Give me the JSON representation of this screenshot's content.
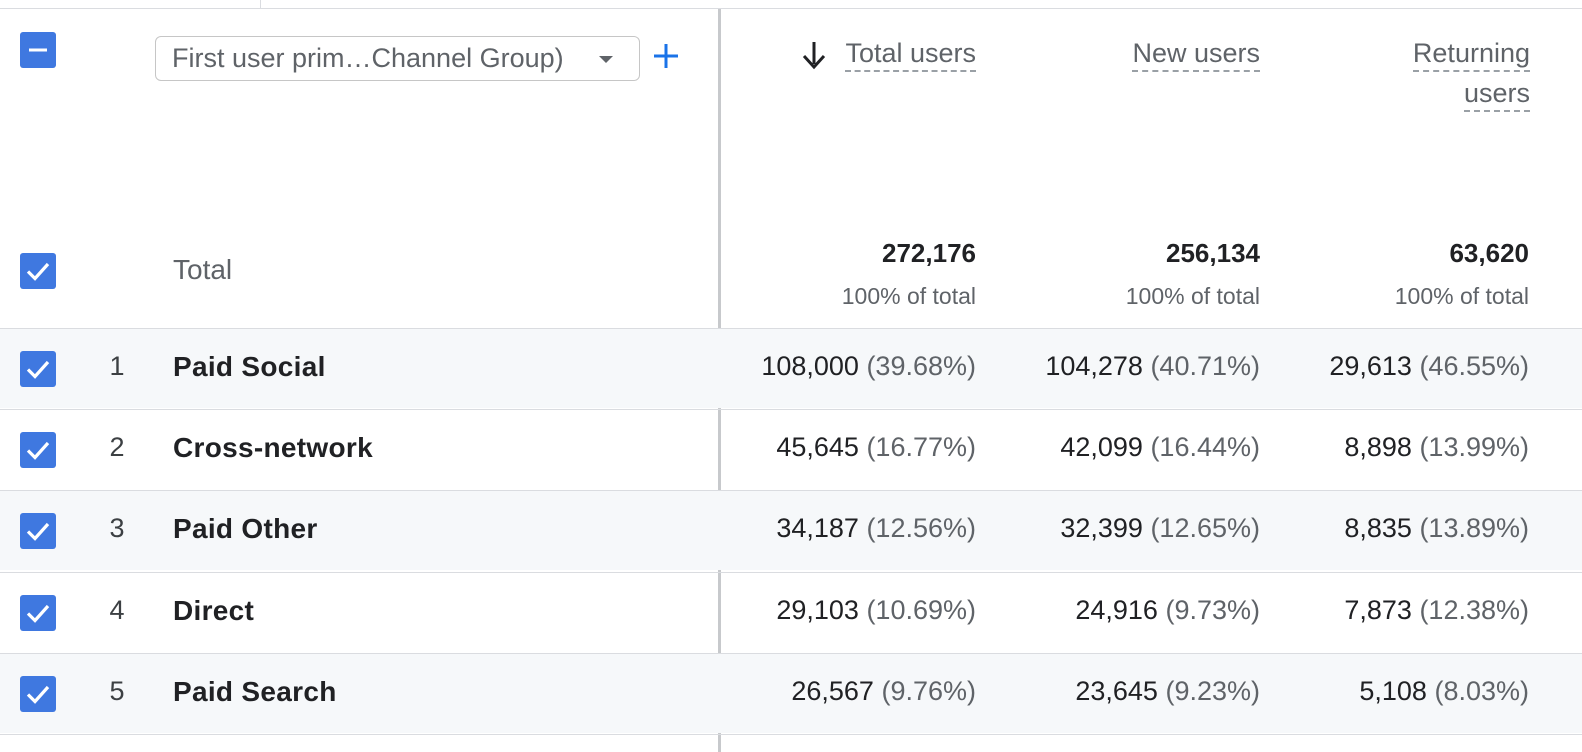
{
  "header": {
    "dimension_select": "First user prim…Channel Group)",
    "columns": [
      {
        "label_line1": "Total users",
        "label_line2": ""
      },
      {
        "label_line1": "New users",
        "label_line2": ""
      },
      {
        "label_line1": "Returning",
        "label_line2": "users"
      }
    ]
  },
  "totals": {
    "label": "Total",
    "values": [
      {
        "value": "272,176",
        "pct": "100% of total"
      },
      {
        "value": "256,134",
        "pct": "100% of total"
      },
      {
        "value": "63,620",
        "pct": "100% of total"
      }
    ]
  },
  "rows": [
    {
      "rank": "1",
      "name": "Paid Social",
      "cells": [
        {
          "n": "108,000",
          "p": "(39.68%)"
        },
        {
          "n": "104,278",
          "p": "(40.71%)"
        },
        {
          "n": "29,613",
          "p": "(46.55%)"
        }
      ]
    },
    {
      "rank": "2",
      "name": "Cross-network",
      "cells": [
        {
          "n": "45,645",
          "p": "(16.77%)"
        },
        {
          "n": "42,099",
          "p": "(16.44%)"
        },
        {
          "n": "8,898",
          "p": "(13.99%)"
        }
      ]
    },
    {
      "rank": "3",
      "name": "Paid Other",
      "cells": [
        {
          "n": "34,187",
          "p": "(12.56%)"
        },
        {
          "n": "32,399",
          "p": "(12.65%)"
        },
        {
          "n": "8,835",
          "p": "(13.89%)"
        }
      ]
    },
    {
      "rank": "4",
      "name": "Direct",
      "cells": [
        {
          "n": "29,103",
          "p": "(10.69%)"
        },
        {
          "n": "24,916",
          "p": "(9.73%)"
        },
        {
          "n": "7,873",
          "p": "(12.38%)"
        }
      ]
    },
    {
      "rank": "5",
      "name": "Paid Search",
      "cells": [
        {
          "n": "26,567",
          "p": "(9.76%)"
        },
        {
          "n": "23,645",
          "p": "(9.23%)"
        },
        {
          "n": "5,108",
          "p": "(8.03%)"
        }
      ]
    }
  ],
  "colors": {
    "accent": "#3f78e0",
    "plus": "#1a73e8"
  },
  "icons": {
    "sort": "arrow-down-icon",
    "add": "plus-icon",
    "select_all": "minus-checkbox-icon",
    "row_check": "checkmark-icon"
  }
}
